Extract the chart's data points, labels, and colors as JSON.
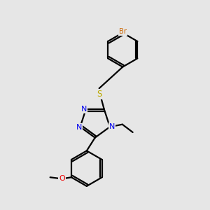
{
  "bg_color": "#e6e6e6",
  "lc": "#000000",
  "lw": 1.6,
  "atom_colors": {
    "N": "#0000ee",
    "S": "#bbaa00",
    "Br": "#cc6600",
    "O": "#ee0000",
    "C": "#000000"
  }
}
